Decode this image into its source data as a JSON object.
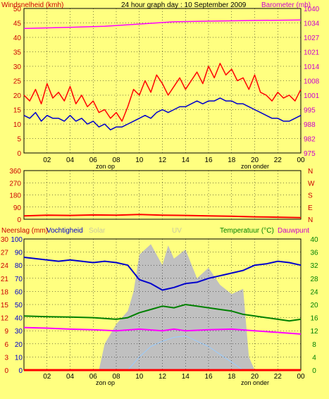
{
  "header": {
    "left_label": "Windsnelheid (kmh)",
    "title": "24 hour graph day : 10 September 2009",
    "right_label": "Barometer (mb)"
  },
  "markers": {
    "sunrise": "zon op",
    "sunset": "zon onder"
  },
  "x_ticks": [
    "02",
    "04",
    "06",
    "08",
    "10",
    "12",
    "14",
    "16",
    "18",
    "20",
    "22",
    "00"
  ],
  "colors": {
    "background": "#ffff80",
    "wind": "#ff0000",
    "wind_avg": "#0000cc",
    "barometer": "#ff00ff",
    "direction": "#ff0000",
    "humidity": "#0000cc",
    "temperature": "#008000",
    "dewpoint": "#ff00ff",
    "solar": "#c0c0c0",
    "uv": "#99ccff",
    "rain": "#ff0000"
  },
  "chart_data": [
    {
      "type": "line",
      "name": "wind-barometer",
      "x_range": [
        0,
        24
      ],
      "left_axis": {
        "label": "Windsnelheid (kmh)",
        "ylim": [
          0,
          50
        ],
        "ticks": [
          "0",
          "5",
          "10",
          "15",
          "20",
          "25",
          "30",
          "35",
          "40",
          "45",
          "50"
        ]
      },
      "right_axis": {
        "label": "Barometer (mb)",
        "ylim": [
          975,
          1040
        ],
        "ticks": [
          "975",
          "982",
          "988",
          "995",
          "1001",
          "1008",
          "1014",
          "1021",
          "1027",
          "1034",
          "1040"
        ]
      },
      "series": [
        {
          "name": "wind_gust",
          "axis": "left",
          "points": [
            [
              0,
              20
            ],
            [
              0.5,
              18
            ],
            [
              1,
              22
            ],
            [
              1.5,
              17
            ],
            [
              2,
              24
            ],
            [
              2.5,
              19
            ],
            [
              3,
              21
            ],
            [
              3.5,
              18
            ],
            [
              4,
              23
            ],
            [
              4.5,
              17
            ],
            [
              5,
              20
            ],
            [
              5.5,
              16
            ],
            [
              6,
              18
            ],
            [
              6.5,
              14
            ],
            [
              7,
              15
            ],
            [
              7.5,
              12
            ],
            [
              8,
              14
            ],
            [
              8.5,
              11
            ],
            [
              9,
              16
            ],
            [
              9.5,
              22
            ],
            [
              10,
              20
            ],
            [
              10.5,
              25
            ],
            [
              11,
              21
            ],
            [
              11.5,
              27
            ],
            [
              12,
              24
            ],
            [
              12.5,
              20
            ],
            [
              13,
              23
            ],
            [
              13.5,
              26
            ],
            [
              14,
              22
            ],
            [
              14.5,
              25
            ],
            [
              15,
              28
            ],
            [
              15.5,
              24
            ],
            [
              16,
              30
            ],
            [
              16.5,
              26
            ],
            [
              17,
              31
            ],
            [
              17.5,
              27
            ],
            [
              18,
              29
            ],
            [
              18.5,
              25
            ],
            [
              19,
              26
            ],
            [
              19.5,
              22
            ],
            [
              20,
              27
            ],
            [
              20.5,
              21
            ],
            [
              21,
              20
            ],
            [
              21.5,
              18
            ],
            [
              22,
              21
            ],
            [
              22.5,
              19
            ],
            [
              23,
              20
            ],
            [
              23.5,
              18
            ],
            [
              24,
              22
            ]
          ]
        },
        {
          "name": "wind_avg",
          "axis": "left",
          "points": [
            [
              0,
              13
            ],
            [
              0.5,
              12
            ],
            [
              1,
              14
            ],
            [
              1.5,
              11
            ],
            [
              2,
              13
            ],
            [
              2.5,
              12
            ],
            [
              3,
              12
            ],
            [
              3.5,
              11
            ],
            [
              4,
              13
            ],
            [
              4.5,
              11
            ],
            [
              5,
              12
            ],
            [
              5.5,
              10
            ],
            [
              6,
              11
            ],
            [
              6.5,
              9
            ],
            [
              7,
              10
            ],
            [
              7.5,
              8
            ],
            [
              8,
              9
            ],
            [
              8.5,
              9
            ],
            [
              9,
              10
            ],
            [
              9.5,
              11
            ],
            [
              10,
              12
            ],
            [
              10.5,
              13
            ],
            [
              11,
              12
            ],
            [
              11.5,
              14
            ],
            [
              12,
              15
            ],
            [
              12.5,
              14
            ],
            [
              13,
              15
            ],
            [
              13.5,
              16
            ],
            [
              14,
              16
            ],
            [
              14.5,
              17
            ],
            [
              15,
              18
            ],
            [
              15.5,
              17
            ],
            [
              16,
              18
            ],
            [
              16.5,
              18
            ],
            [
              17,
              19
            ],
            [
              17.5,
              18
            ],
            [
              18,
              18
            ],
            [
              18.5,
              17
            ],
            [
              19,
              17
            ],
            [
              19.5,
              16
            ],
            [
              20,
              15
            ],
            [
              20.5,
              14
            ],
            [
              21,
              13
            ],
            [
              21.5,
              12
            ],
            [
              22,
              12
            ],
            [
              22.5,
              11
            ],
            [
              23,
              11
            ],
            [
              23.5,
              12
            ],
            [
              24,
              13
            ]
          ]
        },
        {
          "name": "barometer",
          "axis": "right",
          "points": [
            [
              0,
              1031
            ],
            [
              4,
              1031.5
            ],
            [
              7,
              1032
            ],
            [
              10,
              1033
            ],
            [
              13,
              1034
            ],
            [
              16,
              1034.3
            ],
            [
              20,
              1034.6
            ],
            [
              24,
              1034.8
            ]
          ]
        }
      ]
    },
    {
      "type": "line",
      "name": "wind-direction",
      "x_range": [
        0,
        24
      ],
      "left_axis": {
        "ylim": [
          0,
          360
        ],
        "ticks": [
          "0",
          "90",
          "180",
          "270",
          "360"
        ]
      },
      "right_axis": {
        "ticks": [
          "N",
          "E",
          "S",
          "W",
          "N"
        ]
      },
      "series": [
        {
          "name": "direction",
          "points": [
            [
              0,
              25
            ],
            [
              2,
              30
            ],
            [
              4,
              28
            ],
            [
              6,
              32
            ],
            [
              8,
              30
            ],
            [
              10,
              35
            ],
            [
              12,
              30
            ],
            [
              14,
              28
            ],
            [
              16,
              25
            ],
            [
              18,
              22
            ],
            [
              20,
              18
            ],
            [
              22,
              15
            ],
            [
              24,
              12
            ]
          ]
        }
      ]
    },
    {
      "type": "line",
      "name": "climate",
      "x_range": [
        0,
        24
      ],
      "left_axis": {
        "label": "Neerslag (mm)",
        "ylim": [
          0,
          30
        ],
        "ticks": [
          "0",
          "3",
          "6",
          "9",
          "12",
          "15",
          "18",
          "21",
          "24",
          "27",
          "30"
        ]
      },
      "left_axis_2": {
        "label": "Vochtigheid",
        "ylim": [
          0,
          100
        ],
        "ticks": [
          "0",
          "10",
          "20",
          "30",
          "40",
          "50",
          "60",
          "70",
          "80",
          "90",
          "100"
        ]
      },
      "center_labels": [
        "Solar",
        "UV"
      ],
      "right_axis": {
        "label": "Temperatuur (°C)",
        "label_2": "Dauwpunt",
        "ylim": [
          0,
          40
        ],
        "ticks": [
          "0",
          "4",
          "8",
          "12",
          "16",
          "20",
          "24",
          "28",
          "32",
          "36",
          "40"
        ]
      },
      "series": [
        {
          "name": "humidity",
          "axis": "left2",
          "points": [
            [
              0,
              86
            ],
            [
              1,
              85
            ],
            [
              2,
              84
            ],
            [
              3,
              83
            ],
            [
              4,
              84
            ],
            [
              5,
              83
            ],
            [
              6,
              82
            ],
            [
              7,
              83
            ],
            [
              8,
              82
            ],
            [
              9,
              80
            ],
            [
              10,
              69
            ],
            [
              11,
              66
            ],
            [
              12,
              61
            ],
            [
              13,
              63
            ],
            [
              14,
              66
            ],
            [
              15,
              67
            ],
            [
              16,
              70
            ],
            [
              17,
              72
            ],
            [
              18,
              74
            ],
            [
              19,
              76
            ],
            [
              20,
              80
            ],
            [
              21,
              81
            ],
            [
              22,
              83
            ],
            [
              23,
              82
            ],
            [
              24,
              80
            ]
          ]
        },
        {
          "name": "temperature",
          "axis": "right",
          "points": [
            [
              0,
              16.5
            ],
            [
              2,
              16.3
            ],
            [
              4,
              16.2
            ],
            [
              6,
              16
            ],
            [
              8,
              15.5
            ],
            [
              9,
              16
            ],
            [
              10,
              17.5
            ],
            [
              11,
              18.5
            ],
            [
              12,
              19.5
            ],
            [
              13,
              19
            ],
            [
              14,
              20
            ],
            [
              15,
              19.5
            ],
            [
              16,
              19
            ],
            [
              17,
              18.5
            ],
            [
              18,
              18
            ],
            [
              19,
              17
            ],
            [
              20,
              16.5
            ],
            [
              21,
              16
            ],
            [
              22,
              15.5
            ],
            [
              23,
              15
            ],
            [
              24,
              15.5
            ]
          ]
        },
        {
          "name": "dewpoint",
          "axis": "right",
          "points": [
            [
              0,
              13
            ],
            [
              2,
              12.8
            ],
            [
              4,
              12.5
            ],
            [
              6,
              12.3
            ],
            [
              8,
              12
            ],
            [
              10,
              12.5
            ],
            [
              12,
              12
            ],
            [
              13,
              12.5
            ],
            [
              14,
              12
            ],
            [
              16,
              12.3
            ],
            [
              18,
              12.5
            ],
            [
              20,
              12
            ],
            [
              22,
              11.5
            ],
            [
              24,
              11
            ]
          ]
        },
        {
          "name": "solar",
          "axis": "left2",
          "points": [
            [
              6.5,
              0
            ],
            [
              7,
              20
            ],
            [
              8,
              35
            ],
            [
              9,
              45
            ],
            [
              9.5,
              60
            ],
            [
              10,
              88
            ],
            [
              11,
              96
            ],
            [
              12,
              80
            ],
            [
              12.5,
              95
            ],
            [
              13,
              85
            ],
            [
              14,
              92
            ],
            [
              15,
              70
            ],
            [
              16,
              78
            ],
            [
              17,
              65
            ],
            [
              18,
              58
            ],
            [
              19,
              62
            ],
            [
              19.5,
              10
            ],
            [
              20,
              0
            ]
          ]
        },
        {
          "name": "uv",
          "axis": "left2",
          "points": [
            [
              9,
              0
            ],
            [
              10,
              10
            ],
            [
              11,
              18
            ],
            [
              12,
              22
            ],
            [
              13,
              25
            ],
            [
              14,
              26
            ],
            [
              15,
              22
            ],
            [
              16,
              18
            ],
            [
              17,
              12
            ],
            [
              18,
              6
            ],
            [
              19,
              0
            ]
          ]
        },
        {
          "name": "rain",
          "axis": "left",
          "points": [
            [
              0,
              0
            ],
            [
              24,
              0
            ]
          ]
        }
      ]
    }
  ]
}
